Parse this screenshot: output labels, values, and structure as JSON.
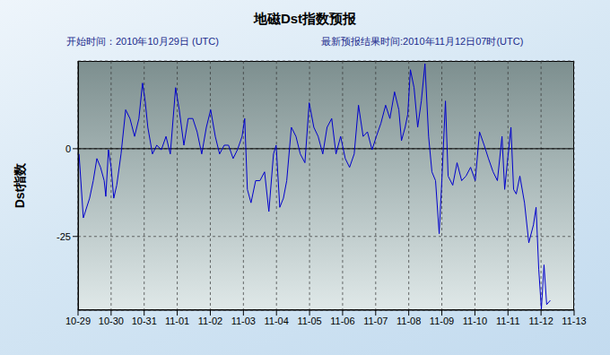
{
  "chart_data": {
    "type": "line",
    "title": "地磁Dst指数预报",
    "annotations": [
      "开始时间：2010年10月29日 (UTC)",
      "最新预报结果时间:2010年11月12日07时(UTC)"
    ],
    "y_label": "Dst指数",
    "color": "#0000cc",
    "grid": true,
    "xlim": [
      0,
      15
    ],
    "xticks": [
      {
        "value": 0,
        "label": "10-29"
      },
      {
        "value": 1,
        "label": "10-30"
      },
      {
        "value": 2,
        "label": "10-31"
      },
      {
        "value": 3,
        "label": "11-01"
      },
      {
        "value": 4,
        "label": "11-02"
      },
      {
        "value": 5,
        "label": "11-03"
      },
      {
        "value": 6,
        "label": "11-04"
      },
      {
        "value": 7,
        "label": "11-05"
      },
      {
        "value": 8,
        "label": "11-06"
      },
      {
        "value": 9,
        "label": "11-07"
      },
      {
        "value": 10,
        "label": "11-08"
      },
      {
        "value": 11,
        "label": "11-09"
      },
      {
        "value": 12,
        "label": "11-10"
      },
      {
        "value": 13,
        "label": "11-11"
      },
      {
        "value": 14,
        "label": "11-12"
      },
      {
        "value": 15,
        "label": "11-13"
      }
    ],
    "ylim": [
      -46,
      25
    ],
    "yticks": [
      -25,
      0
    ],
    "x": [
      0.03,
      0.16,
      0.35,
      0.46,
      0.57,
      0.68,
      0.79,
      0.84,
      0.92,
      1.0,
      1.08,
      1.17,
      1.3,
      1.44,
      1.57,
      1.71,
      1.84,
      1.95,
      2.03,
      2.11,
      2.25,
      2.38,
      2.52,
      2.66,
      2.79,
      2.95,
      3.06,
      3.2,
      3.33,
      3.47,
      3.6,
      3.74,
      3.88,
      4.01,
      4.15,
      4.28,
      4.42,
      4.55,
      4.69,
      4.82,
      4.96,
      5.04,
      5.12,
      5.23,
      5.37,
      5.5,
      5.64,
      5.77,
      5.91,
      5.99,
      6.1,
      6.21,
      6.31,
      6.45,
      6.59,
      6.72,
      6.86,
      6.99,
      7.13,
      7.26,
      7.4,
      7.53,
      7.67,
      7.8,
      7.94,
      8.08,
      8.21,
      8.35,
      8.48,
      8.62,
      8.75,
      8.89,
      9.02,
      9.16,
      9.3,
      9.43,
      9.57,
      9.7,
      9.78,
      9.89,
      9.97,
      10.05,
      10.16,
      10.27,
      10.38,
      10.49,
      10.6,
      10.7,
      10.81,
      10.92,
      11.0,
      11.11,
      11.19,
      11.33,
      11.46,
      11.6,
      11.73,
      11.87,
      12.01,
      12.14,
      12.28,
      12.41,
      12.55,
      12.68,
      12.82,
      12.9,
      12.98,
      13.09,
      13.17,
      13.25,
      13.36,
      13.5,
      13.63,
      13.77,
      13.85,
      13.93,
      14.01,
      14.09,
      14.17,
      14.28
    ],
    "values": [
      -1.5,
      -19.7,
      -14.1,
      -9.1,
      -2.8,
      -5.3,
      -9.1,
      -13.6,
      -0.3,
      -5.3,
      -14.1,
      -10.4,
      -1.5,
      11.1,
      8.6,
      3.5,
      8.6,
      18.7,
      13.6,
      6.1,
      -1.5,
      1.0,
      -0.3,
      3.5,
      -1.5,
      17.4,
      11.1,
      1.0,
      8.6,
      8.6,
      4.8,
      -1.5,
      6.1,
      11.1,
      3.5,
      -1.5,
      1.0,
      1.0,
      -2.8,
      -0.3,
      3.5,
      8.6,
      -11.6,
      -15.4,
      -9.1,
      -9.1,
      -6.6,
      -17.9,
      -1.5,
      1.0,
      -16.7,
      -14.1,
      -9.1,
      6.1,
      3.5,
      -1.5,
      -4.0,
      13.1,
      6.1,
      3.5,
      -1.5,
      6.1,
      8.6,
      -1.5,
      3.5,
      -2.8,
      -5.3,
      -1.5,
      12.4,
      3.5,
      4.8,
      -0.3,
      3.5,
      7.3,
      12.4,
      8.6,
      16.2,
      11.1,
      2.3,
      6.1,
      9.8,
      22.5,
      17.4,
      6.1,
      13.6,
      24.2,
      3.5,
      -6.6,
      -9.1,
      -24.2,
      -9.1,
      13.6,
      -7.8,
      -10.4,
      -4.0,
      -9.1,
      -7.8,
      -5.3,
      -9.1,
      4.8,
      1.0,
      -2.8,
      -6.6,
      -9.1,
      3.5,
      -11.6,
      -4.0,
      6.1,
      -11.6,
      -12.9,
      -7.8,
      -15.4,
      -26.8,
      -21.7,
      -16.7,
      -34.3,
      -45.7,
      -33.1,
      -44.4,
      -43.2
    ]
  }
}
